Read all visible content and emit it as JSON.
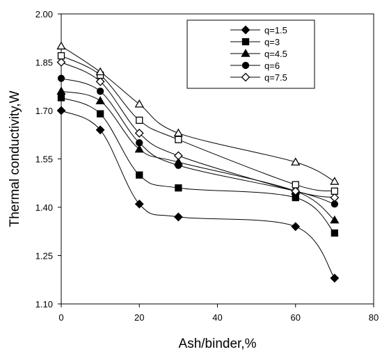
{
  "chart_data": {
    "type": "line",
    "xlabel": "Ash/binder,%",
    "ylabel": "Thermal conductivity,W",
    "xlim": [
      0,
      80
    ],
    "ylim": [
      1.1,
      2.0
    ],
    "x_ticks": [
      "0",
      "20",
      "40",
      "60",
      "80"
    ],
    "y_ticks": [
      "1.10",
      "1.25",
      "1.40",
      "1.55",
      "1.70",
      "1.85",
      "2.00"
    ],
    "grid": false,
    "legend_position": "top-right",
    "x": [
      0,
      10,
      20,
      30,
      60,
      70
    ],
    "series": [
      {
        "name": "q=1.5",
        "marker": "diamond-filled",
        "values": [
          1.7,
          1.64,
          1.41,
          1.37,
          1.34,
          1.18
        ]
      },
      {
        "name": "q=3",
        "marker": "square-filled",
        "values": [
          1.74,
          1.69,
          1.5,
          1.46,
          1.43,
          1.32
        ]
      },
      {
        "name": "q=4.5",
        "marker": "triangle-filled",
        "values": [
          1.76,
          1.73,
          1.58,
          1.54,
          1.45,
          1.36
        ]
      },
      {
        "name": "q=6",
        "marker": "circle-filled",
        "values": [
          1.8,
          1.76,
          1.6,
          1.53,
          1.45,
          1.41
        ]
      },
      {
        "name": "q=7.5",
        "marker": "diamond-open",
        "values": [
          1.85,
          1.79,
          1.63,
          1.56,
          1.45,
          1.43
        ]
      }
    ],
    "extra_series": [
      {
        "marker": "square-open",
        "values": [
          1.87,
          1.81,
          1.67,
          1.61,
          1.47,
          1.45
        ]
      },
      {
        "marker": "triangle-open",
        "values": [
          1.9,
          1.82,
          1.72,
          1.63,
          1.54,
          1.48
        ]
      }
    ]
  }
}
